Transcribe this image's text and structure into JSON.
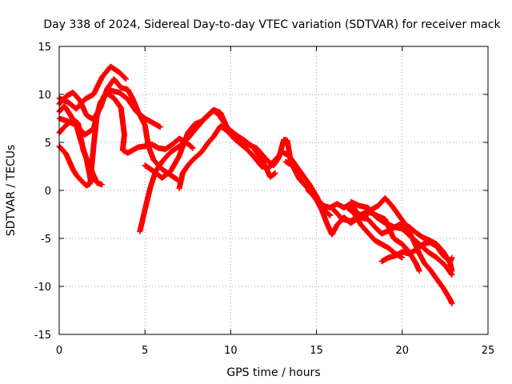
{
  "chart_data": {
    "type": "scatter",
    "title": "Day 338 of 2024, Sidereal Day-to-day VTEC variation (SDTVAR) for receiver mack",
    "xlabel": "GPS time / hours",
    "ylabel": "SDTVAR / TECUs",
    "xlim": [
      0,
      25
    ],
    "ylim": [
      -15,
      15
    ],
    "xticks": [
      0,
      5,
      10,
      15,
      20,
      25
    ],
    "yticks": [
      -15,
      -10,
      -5,
      0,
      5,
      10,
      15
    ],
    "grid": true,
    "marker": "+",
    "color": "#ff0000",
    "series": [
      {
        "name": "s1",
        "points": [
          [
            0,
            4.6
          ],
          [
            0.4,
            3.8
          ],
          [
            0.8,
            2.2
          ],
          [
            1.0,
            1.6
          ],
          [
            1.2,
            1.2
          ],
          [
            1.4,
            0.8
          ],
          [
            1.6,
            0.5
          ],
          [
            1.8,
            0.7
          ],
          [
            2.0,
            4.5
          ],
          [
            2.2,
            7.8
          ],
          [
            2.6,
            9.8
          ],
          [
            3.0,
            10.4
          ],
          [
            3.5,
            10.2
          ],
          [
            4.0,
            9.5
          ],
          [
            4.5,
            8.2
          ],
          [
            5.0,
            7.5
          ],
          [
            5.5,
            7.0
          ],
          [
            5.9,
            6.6
          ]
        ]
      },
      {
        "name": "s2",
        "points": [
          [
            0,
            6.0
          ],
          [
            0.4,
            6.8
          ],
          [
            0.8,
            7.4
          ],
          [
            1.1,
            7.0
          ],
          [
            1.4,
            4.2
          ],
          [
            1.8,
            2.4
          ],
          [
            2.2,
            0.8
          ],
          [
            2.5,
            0.6
          ]
        ]
      },
      {
        "name": "s3",
        "points": [
          [
            0,
            7.5
          ],
          [
            0.5,
            7.2
          ],
          [
            1.0,
            6.8
          ],
          [
            1.2,
            5.5
          ],
          [
            1.6,
            3.2
          ],
          [
            1.85,
            0.9
          ]
        ]
      },
      {
        "name": "s4",
        "points": [
          [
            0,
            9.0
          ],
          [
            0.4,
            9.8
          ],
          [
            0.8,
            10.2
          ],
          [
            1.2,
            9.4
          ],
          [
            1.6,
            7.8
          ],
          [
            2.0,
            7.4
          ],
          [
            2.4,
            8.6
          ],
          [
            2.8,
            10.6
          ],
          [
            3.2,
            11.6
          ],
          [
            3.6,
            10.7
          ],
          [
            4.0,
            10.5
          ],
          [
            4.3,
            9.5
          ],
          [
            4.6,
            8.2
          ],
          [
            5.0,
            6.8
          ],
          [
            5.2,
            4.6
          ],
          [
            5.5,
            3.2
          ],
          [
            6.0,
            2.2
          ],
          [
            6.5,
            1.6
          ],
          [
            6.9,
            1.1
          ]
        ]
      },
      {
        "name": "s5",
        "points": [
          [
            0,
            9.6
          ],
          [
            0.5,
            9.2
          ],
          [
            1.0,
            8.5
          ],
          [
            1.5,
            9.5
          ],
          [
            2.0,
            10.0
          ],
          [
            2.5,
            11.8
          ],
          [
            3.0,
            12.9
          ],
          [
            3.5,
            12.3
          ],
          [
            3.9,
            11.6
          ]
        ]
      },
      {
        "name": "s6",
        "points": [
          [
            0,
            8.2
          ],
          [
            0.3,
            8.8
          ],
          [
            0.6,
            8.0
          ],
          [
            1.0,
            6.8
          ],
          [
            1.5,
            5.8
          ],
          [
            2.0,
            6.4
          ],
          [
            2.4,
            9.2
          ],
          [
            2.8,
            10.1
          ],
          [
            3.2,
            9.6
          ],
          [
            3.6,
            8.6
          ],
          [
            3.8,
            5.8
          ],
          [
            3.7,
            4.2
          ],
          [
            4.0,
            3.9
          ],
          [
            4.3,
            4.2
          ],
          [
            4.6,
            4.5
          ],
          [
            5.0,
            4.6
          ],
          [
            5.4,
            4.8
          ],
          [
            5.8,
            4.4
          ],
          [
            6.2,
            4.3
          ],
          [
            6.6,
            4.8
          ],
          [
            7.0,
            5.4
          ],
          [
            7.4,
            5.0
          ],
          [
            7.8,
            4.4
          ]
        ]
      },
      {
        "name": "s7",
        "points": [
          [
            4.7,
            -4.3
          ],
          [
            5.0,
            -2.0
          ],
          [
            5.3,
            0.2
          ],
          [
            5.6,
            1.9
          ],
          [
            6.0,
            3.0
          ],
          [
            6.5,
            4.0
          ],
          [
            7.0,
            4.6
          ],
          [
            7.5,
            5.4
          ],
          [
            8.0,
            6.5
          ],
          [
            8.5,
            7.5
          ],
          [
            9.0,
            8.3
          ],
          [
            9.3,
            7.9
          ],
          [
            9.6,
            7.1
          ],
          [
            10.0,
            6.0
          ],
          [
            10.5,
            5.2
          ],
          [
            11.0,
            4.8
          ],
          [
            11.5,
            4.4
          ],
          [
            11.8,
            3.8
          ],
          [
            12.2,
            3.0
          ],
          [
            12.5,
            2.6
          ],
          [
            12.8,
            3.4
          ],
          [
            13.1,
            5.3
          ],
          [
            13.3,
            5.2
          ],
          [
            13.5,
            3.0
          ]
        ]
      },
      {
        "name": "s8",
        "points": [
          [
            5.0,
            2.6
          ],
          [
            5.5,
            2.0
          ],
          [
            6.0,
            1.3
          ],
          [
            6.5,
            2.0
          ],
          [
            7.0,
            3.6
          ],
          [
            7.5,
            6.0
          ],
          [
            7.9,
            6.9
          ],
          [
            8.3,
            7.2
          ],
          [
            8.7,
            7.9
          ],
          [
            9.0,
            8.4
          ],
          [
            9.4,
            8.1
          ],
          [
            9.8,
            6.5
          ],
          [
            10.3,
            5.8
          ],
          [
            10.8,
            5.2
          ],
          [
            11.3,
            4.5
          ],
          [
            11.7,
            3.5
          ],
          [
            12.0,
            2.6
          ],
          [
            12.3,
            1.4
          ],
          [
            12.6,
            1.8
          ]
        ]
      },
      {
        "name": "s9",
        "points": [
          [
            7.0,
            0.2
          ],
          [
            7.2,
            1.8
          ],
          [
            7.5,
            2.6
          ],
          [
            7.8,
            3.2
          ],
          [
            8.3,
            4.0
          ],
          [
            8.7,
            5.0
          ],
          [
            9.0,
            5.6
          ],
          [
            9.4,
            6.7
          ],
          [
            9.8,
            6.2
          ],
          [
            10.2,
            5.4
          ],
          [
            10.6,
            4.8
          ],
          [
            11.0,
            4.2
          ],
          [
            11.4,
            3.4
          ],
          [
            11.8,
            2.5
          ],
          [
            12.2,
            2.3
          ],
          [
            12.6,
            3.2
          ],
          [
            13.0,
            4.0
          ],
          [
            13.4,
            3.6
          ],
          [
            13.8,
            2.6
          ],
          [
            14.2,
            1.6
          ],
          [
            14.6,
            0.6
          ],
          [
            15.0,
            -0.6
          ],
          [
            15.4,
            -2.0
          ],
          [
            15.8,
            -2.6
          ]
        ]
      },
      {
        "name": "s10",
        "points": [
          [
            13.2,
            3.0
          ],
          [
            13.6,
            2.6
          ],
          [
            14.0,
            1.2
          ],
          [
            14.5,
            0.2
          ],
          [
            15.0,
            -1.0
          ],
          [
            15.3,
            -2.0
          ],
          [
            15.6,
            -3.4
          ],
          [
            15.9,
            -4.6
          ],
          [
            16.2,
            -3.6
          ],
          [
            16.6,
            -2.8
          ],
          [
            17.0,
            -3.4
          ],
          [
            17.5,
            -2.8
          ],
          [
            18.0,
            -3.0
          ],
          [
            18.4,
            -3.8
          ],
          [
            18.8,
            -4.5
          ],
          [
            19.2,
            -4.2
          ],
          [
            19.6,
            -3.8
          ],
          [
            20.0,
            -3.4
          ],
          [
            20.4,
            -3.8
          ],
          [
            20.8,
            -4.4
          ],
          [
            21.2,
            -4.9
          ],
          [
            21.6,
            -5.2
          ],
          [
            22.0,
            -5.6
          ],
          [
            22.4,
            -6.4
          ],
          [
            22.8,
            -7.6
          ],
          [
            22.9,
            -8.4
          ]
        ]
      },
      {
        "name": "s11",
        "points": [
          [
            14.5,
            0.0
          ],
          [
            15.0,
            -0.8
          ],
          [
            15.4,
            -1.6
          ],
          [
            15.8,
            -1.8
          ],
          [
            16.2,
            -1.4
          ],
          [
            16.6,
            -1.8
          ],
          [
            17.0,
            -1.4
          ],
          [
            17.4,
            -2.4
          ],
          [
            17.8,
            -2.8
          ],
          [
            18.2,
            -2.0
          ],
          [
            18.6,
            -1.6
          ],
          [
            19.0,
            -0.8
          ],
          [
            19.4,
            -1.6
          ],
          [
            19.8,
            -2.6
          ],
          [
            20.2,
            -3.6
          ],
          [
            20.6,
            -5.0
          ],
          [
            21.0,
            -6.6
          ],
          [
            21.3,
            -7.6
          ],
          [
            21.6,
            -8.2
          ],
          [
            22.0,
            -9.2
          ],
          [
            22.4,
            -10.2
          ],
          [
            22.8,
            -11.4
          ],
          [
            22.9,
            -11.8
          ]
        ]
      },
      {
        "name": "s12",
        "points": [
          [
            16.0,
            -2.0
          ],
          [
            16.5,
            -3.0
          ],
          [
            17.0,
            -3.2
          ],
          [
            17.5,
            -2.6
          ],
          [
            18.0,
            -2.2
          ],
          [
            18.5,
            -2.6
          ],
          [
            19.0,
            -3.0
          ],
          [
            19.5,
            -5.0
          ],
          [
            20.0,
            -5.6
          ],
          [
            20.4,
            -6.4
          ],
          [
            20.8,
            -7.6
          ],
          [
            21.0,
            -8.4
          ]
        ]
      },
      {
        "name": "s13",
        "points": [
          [
            16.8,
            -1.8
          ],
          [
            17.2,
            -2.4
          ],
          [
            17.6,
            -3.6
          ],
          [
            18.0,
            -4.4
          ],
          [
            18.4,
            -5.2
          ],
          [
            18.8,
            -5.6
          ],
          [
            19.2,
            -6.0
          ],
          [
            19.6,
            -6.6
          ],
          [
            20.0,
            -7.0
          ]
        ]
      },
      {
        "name": "s14",
        "points": [
          [
            18.8,
            -7.4
          ],
          [
            19.2,
            -7.0
          ],
          [
            19.6,
            -6.8
          ],
          [
            20.0,
            -6.4
          ],
          [
            20.4,
            -6.6
          ],
          [
            20.8,
            -6.2
          ],
          [
            21.2,
            -5.6
          ],
          [
            21.6,
            -5.4
          ],
          [
            22.0,
            -5.8
          ],
          [
            22.4,
            -6.8
          ],
          [
            22.8,
            -7.4
          ],
          [
            22.9,
            -7.0
          ]
        ]
      },
      {
        "name": "s15",
        "points": [
          [
            17.0,
            -1.2
          ],
          [
            17.5,
            -1.6
          ],
          [
            18.0,
            -1.8
          ],
          [
            18.5,
            -2.8
          ],
          [
            19.0,
            -3.4
          ],
          [
            19.5,
            -3.8
          ],
          [
            20.0,
            -4.0
          ],
          [
            20.5,
            -4.8
          ],
          [
            21.0,
            -5.6
          ],
          [
            21.5,
            -6.4
          ],
          [
            22.0,
            -7.0
          ],
          [
            22.5,
            -7.8
          ],
          [
            22.9,
            -8.8
          ]
        ]
      }
    ]
  }
}
